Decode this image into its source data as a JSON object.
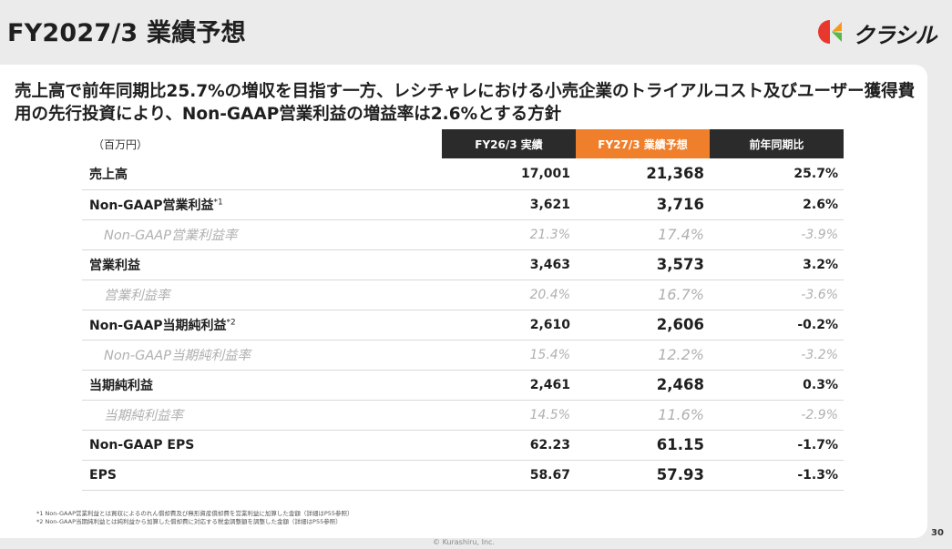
{
  "title": "FY2027/3 業績予想",
  "logo": {
    "text": "クラシル",
    "colors": {
      "red": "#e8382d",
      "orange": "#f39a1e",
      "green": "#57b947"
    }
  },
  "headline": "売上高で前年同期比25.7%の増収を目指す一方、レシチャレにおける小売企業のトライアルコスト及びユーザー獲得費用の先行投資により、Non-GAAP営業利益の増益率は2.6%とする方針",
  "table": {
    "unit": "（百万円）",
    "headers": {
      "actual": "FY26/3 実績",
      "forecast": "FY27/3 業績予想",
      "yoy": "前年同期比"
    },
    "header_colors": {
      "dark": "#2b2b2b",
      "orange": "#f07f2c"
    },
    "rows": [
      {
        "label": "売上高",
        "sup": "",
        "actual": "17,001",
        "forecast": "21,368",
        "yoy": "25.7%"
      },
      {
        "label": "Non-GAAP営業利益",
        "sup": "*1",
        "actual": "3,621",
        "forecast": "3,716",
        "yoy": "2.6%"
      },
      {
        "label": "Non-GAAP営業利益率",
        "sup": "",
        "actual": "21.3%",
        "forecast": "17.4%",
        "yoy": "-3.9%"
      },
      {
        "label": "営業利益",
        "sup": "",
        "actual": "3,463",
        "forecast": "3,573",
        "yoy": "3.2%"
      },
      {
        "label": "営業利益率",
        "sup": "",
        "actual": "20.4%",
        "forecast": "16.7%",
        "yoy": "-3.6%"
      },
      {
        "label": "Non-GAAP当期純利益",
        "sup": "*2",
        "actual": "2,610",
        "forecast": "2,606",
        "yoy": "-0.2%"
      },
      {
        "label": "Non-GAAP当期純利益率",
        "sup": "",
        "actual": "15.4%",
        "forecast": "12.2%",
        "yoy": "-3.2%"
      },
      {
        "label": "当期純利益",
        "sup": "",
        "actual": "2,461",
        "forecast": "2,468",
        "yoy": "0.3%"
      },
      {
        "label": "当期純利益率",
        "sup": "",
        "actual": "14.5%",
        "forecast": "11.6%",
        "yoy": "-2.9%"
      },
      {
        "label": "Non-GAAP EPS",
        "sup": "",
        "actual": "62.23",
        "forecast": "61.15",
        "yoy": "-1.7%"
      },
      {
        "label": "EPS",
        "sup": "",
        "actual": "58.67",
        "forecast": "57.93",
        "yoy": "-1.3%"
      }
    ]
  },
  "footnotes": [
    "*1 Non-GAAP営業利益とは買収によるのれん償却費及び無形資産償却費を営業利益に加算した金額（詳細はP55参照）",
    "*2 Non-GAAP当期純利益とは純利益から加算した償却費に対応する税金調整額を調整した金額（詳細はP55参照）"
  ],
  "copyright": "© Kurashiru, Inc.",
  "page_number": "30"
}
